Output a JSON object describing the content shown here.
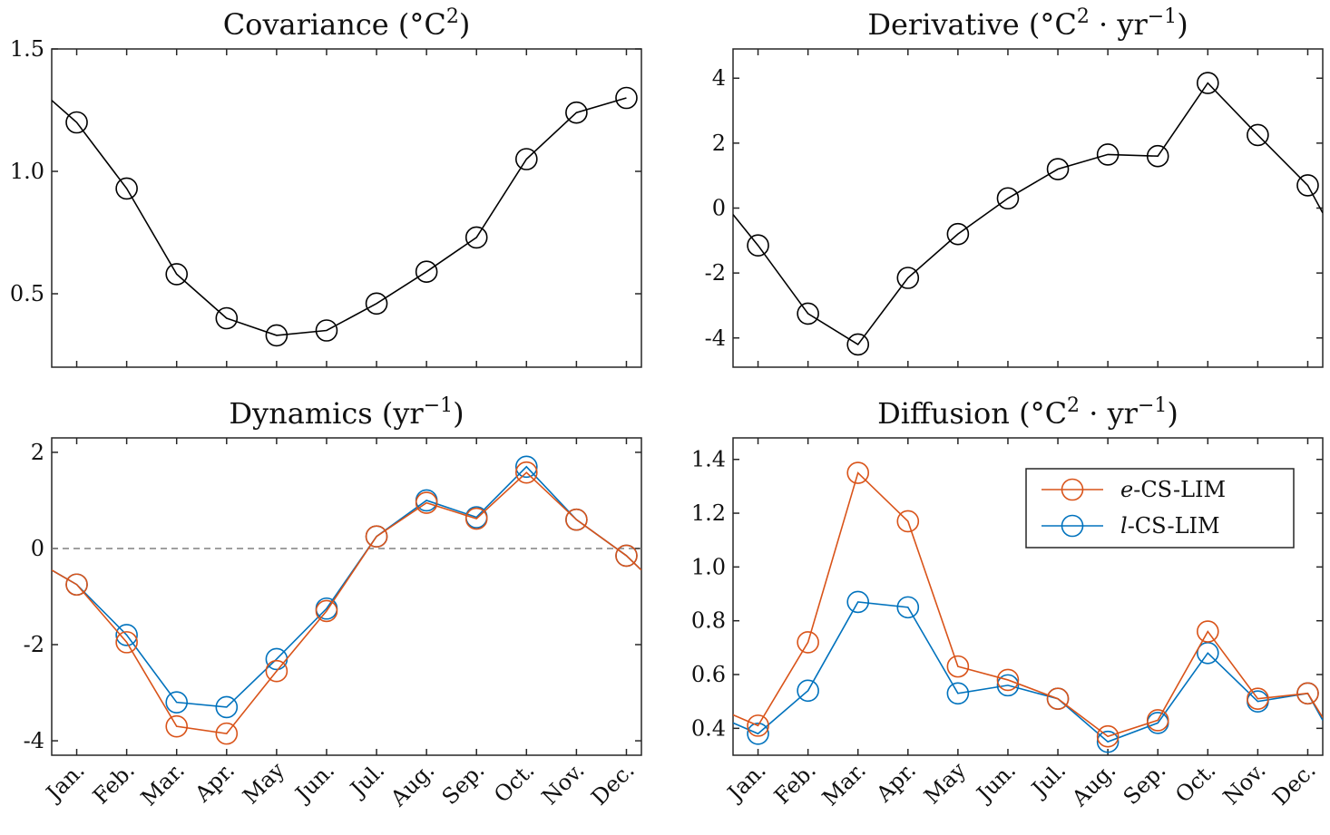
{
  "colors": {
    "black": "#000000",
    "orange": "#d95319",
    "blue": "#0072bd",
    "zero_line": "#808080"
  },
  "months": [
    "Jan.",
    "Feb.",
    "Mar.",
    "Apr.",
    "May",
    "Jun.",
    "Jul.",
    "Aug.",
    "Sep.",
    "Oct.",
    "Nov.",
    "Dec."
  ],
  "chart_data": [
    {
      "id": "covariance",
      "type": "line",
      "title": "Covariance",
      "title_main": "Covariance (°C",
      "title_sup": "2",
      "title_end": ")",
      "ylim": [
        0.2,
        1.5
      ],
      "yticks": [
        0.5,
        1.0,
        1.5
      ],
      "ytick_labels": [
        "0.5",
        "1.0",
        "1.5"
      ],
      "show_xticklabels": false,
      "left_edge": 1.29,
      "right_edge": null,
      "series": [
        {
          "name": "covariance",
          "color": "black",
          "values": [
            1.2,
            0.93,
            0.58,
            0.4,
            0.33,
            0.35,
            0.46,
            0.59,
            0.73,
            1.05,
            1.24,
            1.3
          ]
        }
      ]
    },
    {
      "id": "derivative",
      "type": "line",
      "title": "Derivative",
      "title_main": "Derivative (°C",
      "title_sup": "2",
      "title_mid": " · yr",
      "title_sup2": "−1",
      "title_end": ")",
      "ylim": [
        -4.9,
        4.9
      ],
      "yticks": [
        -4,
        -2,
        0,
        2,
        4
      ],
      "ytick_labels": [
        "-4",
        "-2",
        "0",
        "2",
        "4"
      ],
      "show_xticklabels": false,
      "left_edge": -0.2,
      "right_edge": -0.15,
      "series": [
        {
          "name": "derivative",
          "color": "black",
          "values": [
            -1.15,
            -3.25,
            -4.2,
            -2.15,
            -0.8,
            0.3,
            1.2,
            1.65,
            1.6,
            3.85,
            2.25,
            0.7
          ]
        }
      ]
    },
    {
      "id": "dynamics",
      "type": "line",
      "title": "Dynamics",
      "title_main": "Dynamics (yr",
      "title_sup": "−1",
      "title_end": ")",
      "ylim": [
        -4.3,
        2.3
      ],
      "yticks": [
        -4,
        -2,
        0,
        2
      ],
      "ytick_labels": [
        "-4",
        "-2",
        "0",
        "2"
      ],
      "show_xticklabels": true,
      "zero_line": true,
      "left_edge": -0.45,
      "right_edge": -0.45,
      "series": [
        {
          "name": "l-CS-LIM",
          "color": "blue",
          "values": [
            -0.75,
            -1.8,
            -3.2,
            -3.3,
            -2.3,
            -1.25,
            0.25,
            1.0,
            0.65,
            1.7,
            0.6,
            -0.15
          ]
        },
        {
          "name": "e-CS-LIM",
          "color": "orange",
          "values": [
            -0.75,
            -1.95,
            -3.7,
            -3.85,
            -2.55,
            -1.3,
            0.25,
            0.95,
            0.62,
            1.58,
            0.6,
            -0.15
          ]
        }
      ]
    },
    {
      "id": "diffusion",
      "type": "line",
      "title": "Diffusion",
      "title_main": "Diffusion (°C",
      "title_sup": "2",
      "title_mid": " · yr",
      "title_sup2": "−1",
      "title_end": ")",
      "ylim": [
        0.3,
        1.48
      ],
      "yticks": [
        0.4,
        0.6,
        0.8,
        1.0,
        1.2,
        1.4
      ],
      "ytick_labels": [
        "0.4",
        "0.6",
        "0.8",
        "1.0",
        "1.2",
        "1.4"
      ],
      "show_xticklabels": true,
      "left_edge": 0.45,
      "right_edge": 0.44,
      "series": [
        {
          "name": "l-CS-LIM",
          "color": "blue",
          "values": [
            0.38,
            0.54,
            0.87,
            0.85,
            0.53,
            0.56,
            0.51,
            0.35,
            0.42,
            0.68,
            0.5,
            0.53
          ],
          "left_edge": 0.42,
          "right_edge": 0.43
        },
        {
          "name": "e-CS-LIM",
          "color": "orange",
          "values": [
            0.41,
            0.72,
            1.35,
            1.17,
            0.63,
            0.58,
            0.51,
            0.37,
            0.43,
            0.76,
            0.51,
            0.53
          ]
        }
      ],
      "legend": {
        "placement": "top-right",
        "entries": [
          {
            "prefix": "e",
            "label": "-CS-LIM",
            "color": "orange"
          },
          {
            "prefix": "l",
            "label": "-CS-LIM",
            "color": "blue"
          }
        ]
      }
    }
  ]
}
